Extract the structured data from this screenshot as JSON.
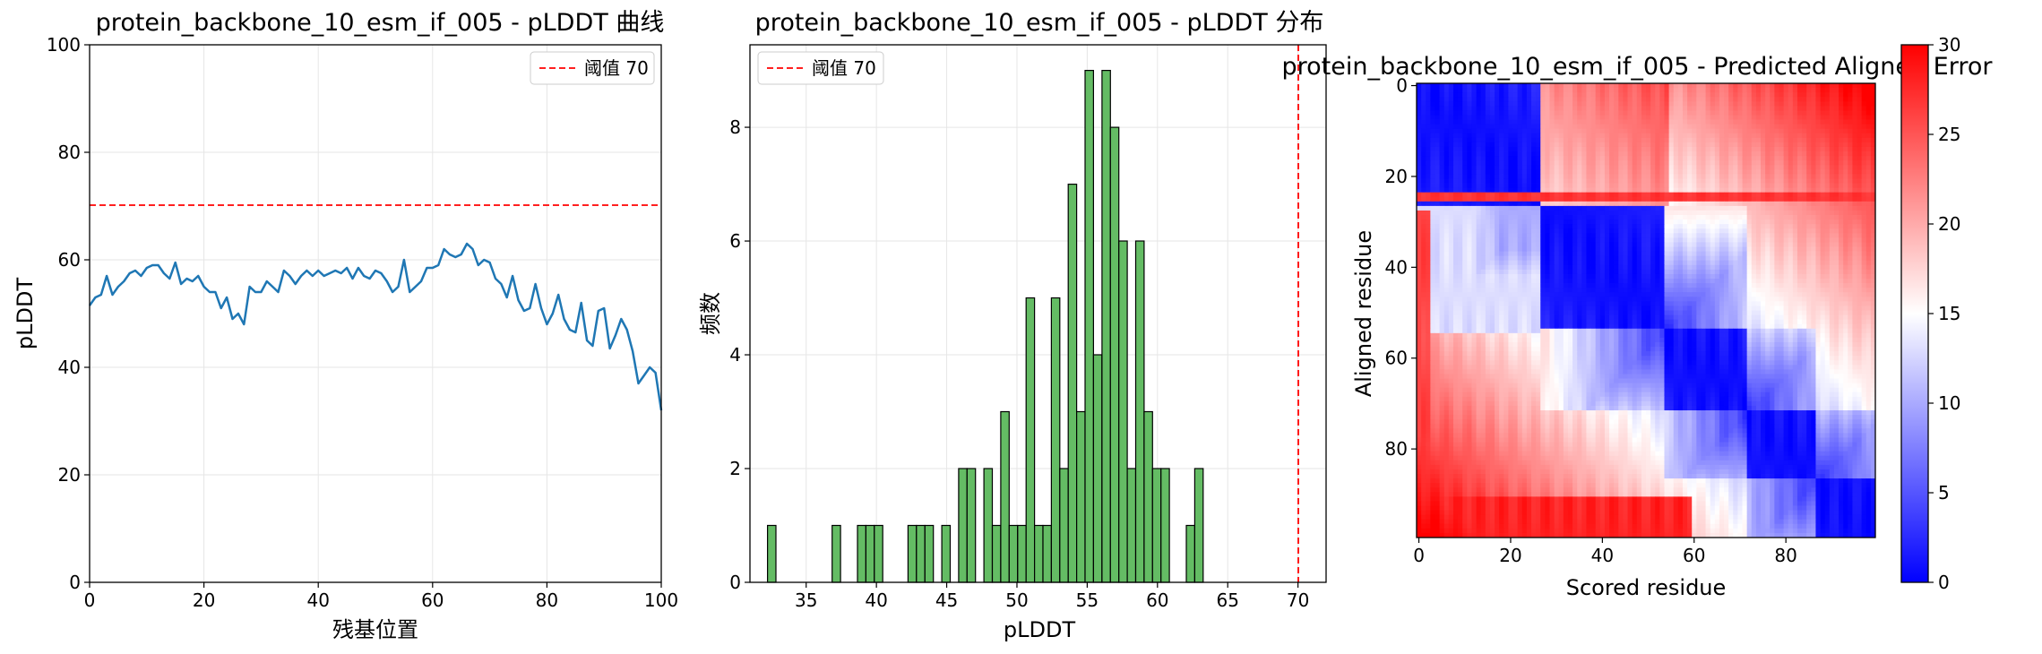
{
  "figure": {
    "background": "#ffffff"
  },
  "chart_data": [
    {
      "type": "line",
      "title": "protein_backbone_10_esm_if_005 - pLDDT 曲线",
      "xlabel": "残基位置",
      "ylabel": "pLDDT",
      "xlim": [
        0,
        100
      ],
      "ylim": [
        0,
        100
      ],
      "xticks": [
        "0",
        "20",
        "40",
        "60",
        "80",
        "100"
      ],
      "yticks": [
        "0",
        "20",
        "40",
        "60",
        "80",
        "100"
      ],
      "grid": true,
      "legend_position": "top-right",
      "series": [
        {
          "color": "#1f77b4",
          "x": [
            0,
            1,
            2,
            3,
            4,
            5,
            6,
            7,
            8,
            9,
            10,
            11,
            12,
            13,
            14,
            15,
            16,
            17,
            18,
            19,
            20,
            21,
            22,
            23,
            24,
            25,
            26,
            27,
            28,
            29,
            30,
            31,
            32,
            33,
            34,
            35,
            36,
            37,
            38,
            39,
            40,
            41,
            42,
            43,
            44,
            45,
            46,
            47,
            48,
            49,
            50,
            51,
            52,
            53,
            54,
            55,
            56,
            57,
            58,
            59,
            60,
            61,
            62,
            63,
            64,
            65,
            66,
            67,
            68,
            69,
            70,
            71,
            72,
            73,
            74,
            75,
            76,
            77,
            78,
            79,
            80,
            81,
            82,
            83,
            84,
            85,
            86,
            87,
            88,
            89,
            90,
            91,
            92,
            93,
            94,
            95,
            96,
            97,
            98,
            99,
            100
          ],
          "y": [
            51.5,
            53,
            53.5,
            57,
            53.5,
            55,
            56,
            57.5,
            58,
            57,
            58.5,
            59,
            59,
            57.5,
            56.5,
            59.5,
            55.5,
            56.5,
            56,
            57,
            55,
            54,
            54,
            51,
            53,
            49,
            50,
            48,
            55,
            54,
            54,
            56,
            55,
            54,
            58,
            57,
            55.5,
            57,
            58,
            57,
            58,
            57,
            57.5,
            58,
            57.5,
            58.5,
            56.5,
            58.5,
            57,
            56.5,
            58,
            57.5,
            56,
            54,
            55,
            60,
            54,
            55,
            56,
            58.5,
            58.5,
            59,
            62,
            61,
            60.5,
            61,
            63,
            62,
            59,
            60,
            59.5,
            56.5,
            55.5,
            53,
            57,
            52.5,
            50.5,
            51,
            55.5,
            51,
            48,
            50,
            53.5,
            49,
            47,
            46.5,
            52,
            45,
            44,
            50.5,
            51,
            43.5,
            46,
            49,
            47,
            43,
            37,
            38.5,
            40,
            39,
            32
          ]
        },
        {
          "name": "阈值 70",
          "style": "dashed",
          "color": "#ff0000",
          "y_const": 70
        }
      ]
    },
    {
      "type": "bar",
      "title": "protein_backbone_10_esm_if_005 - pLDDT 分布",
      "xlabel": "pLDDT",
      "ylabel": "频数",
      "xlim": [
        31,
        72
      ],
      "ylim": [
        0,
        9.45
      ],
      "xticks": [
        "35",
        "40",
        "45",
        "50",
        "55",
        "60",
        "65",
        "70"
      ],
      "yticks": [
        "0",
        "2",
        "4",
        "6",
        "8"
      ],
      "grid": true,
      "legend_position": "top-left",
      "bar_color": "#5cb85c",
      "bins": [
        {
          "x0": 32.25,
          "x1": 32.85,
          "count": 1
        },
        {
          "x0": 36.85,
          "x1": 37.45,
          "count": 1
        },
        {
          "x0": 38.65,
          "x1": 39.25,
          "count": 1
        },
        {
          "x0": 39.25,
          "x1": 39.85,
          "count": 1
        },
        {
          "x0": 39.85,
          "x1": 40.45,
          "count": 1
        },
        {
          "x0": 42.25,
          "x1": 42.85,
          "count": 1
        },
        {
          "x0": 42.85,
          "x1": 43.45,
          "count": 1
        },
        {
          "x0": 43.45,
          "x1": 44.05,
          "count": 1
        },
        {
          "x0": 44.65,
          "x1": 45.25,
          "count": 1
        },
        {
          "x0": 45.85,
          "x1": 46.45,
          "count": 2
        },
        {
          "x0": 46.45,
          "x1": 47.05,
          "count": 2
        },
        {
          "x0": 47.65,
          "x1": 48.25,
          "count": 2
        },
        {
          "x0": 48.25,
          "x1": 48.85,
          "count": 1
        },
        {
          "x0": 48.85,
          "x1": 49.45,
          "count": 3
        },
        {
          "x0": 49.45,
          "x1": 50.05,
          "count": 1
        },
        {
          "x0": 50.05,
          "x1": 50.65,
          "count": 1
        },
        {
          "x0": 50.65,
          "x1": 51.25,
          "count": 5
        },
        {
          "x0": 51.25,
          "x1": 51.85,
          "count": 1
        },
        {
          "x0": 51.85,
          "x1": 52.45,
          "count": 1
        },
        {
          "x0": 52.45,
          "x1": 53.05,
          "count": 5
        },
        {
          "x0": 53.05,
          "x1": 53.65,
          "count": 2
        },
        {
          "x0": 53.65,
          "x1": 54.25,
          "count": 7
        },
        {
          "x0": 54.25,
          "x1": 54.85,
          "count": 3
        },
        {
          "x0": 54.85,
          "x1": 55.45,
          "count": 9
        },
        {
          "x0": 55.45,
          "x1": 56.05,
          "count": 4
        },
        {
          "x0": 56.05,
          "x1": 56.65,
          "count": 9
        },
        {
          "x0": 56.65,
          "x1": 57.25,
          "count": 8
        },
        {
          "x0": 57.25,
          "x1": 57.85,
          "count": 6
        },
        {
          "x0": 57.85,
          "x1": 58.45,
          "count": 2
        },
        {
          "x0": 58.45,
          "x1": 59.05,
          "count": 6
        },
        {
          "x0": 59.05,
          "x1": 59.65,
          "count": 3
        },
        {
          "x0": 59.65,
          "x1": 60.25,
          "count": 2
        },
        {
          "x0": 60.25,
          "x1": 60.85,
          "count": 2
        },
        {
          "x0": 62.05,
          "x1": 62.65,
          "count": 1
        },
        {
          "x0": 62.65,
          "x1": 63.25,
          "count": 2
        }
      ],
      "series": [
        {
          "name": "阈值 70",
          "style": "dashed",
          "color": "#ff0000",
          "x_const": 70
        }
      ]
    },
    {
      "type": "heatmap",
      "title": "protein_backbone_10_esm_if_005 - Predicted Aligned Error",
      "xlabel": "Scored residue",
      "ylabel": "Aligned residue",
      "size": 100,
      "xticks": [
        "0",
        "20",
        "40",
        "60",
        "80"
      ],
      "yticks": [
        "0",
        "20",
        "40",
        "60",
        "80"
      ],
      "colormap": "bwr",
      "vmin": 0,
      "vmax": 30,
      "colorbar_ticks": [
        "0",
        "5",
        "10",
        "15",
        "20",
        "25",
        "30"
      ]
    }
  ]
}
